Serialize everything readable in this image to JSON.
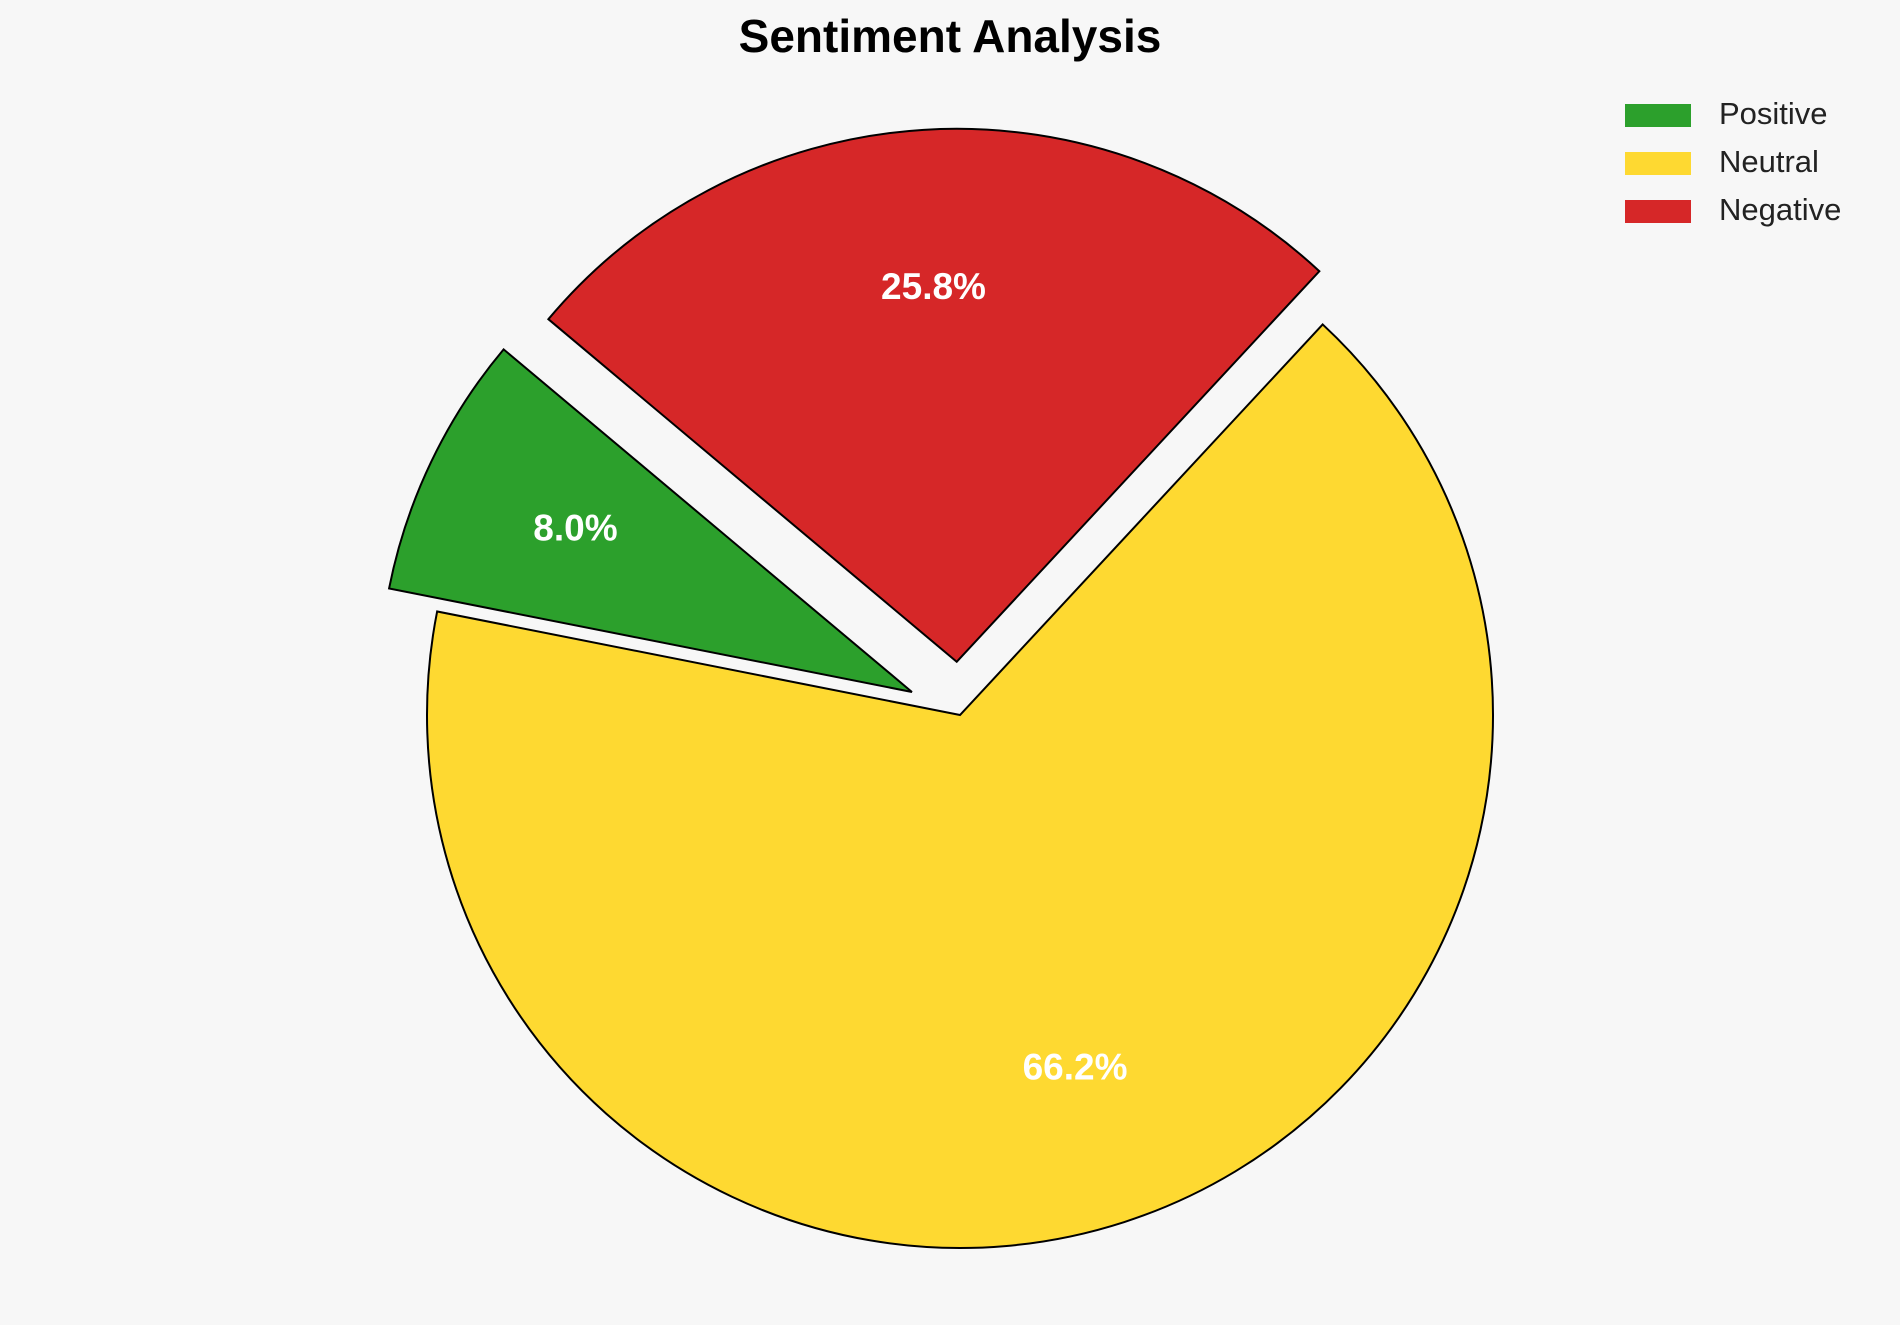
{
  "chart_data": {
    "type": "pie",
    "title": "Sentiment Analysis",
    "categories": [
      "Positive",
      "Neutral",
      "Negative"
    ],
    "values": [
      8.0,
      66.2,
      25.8
    ],
    "value_labels": [
      "8.0%",
      "66.2%",
      "25.8%"
    ],
    "colors": [
      "#2ca02c",
      "#fed931",
      "#d62728"
    ],
    "legend": "upper right"
  }
}
